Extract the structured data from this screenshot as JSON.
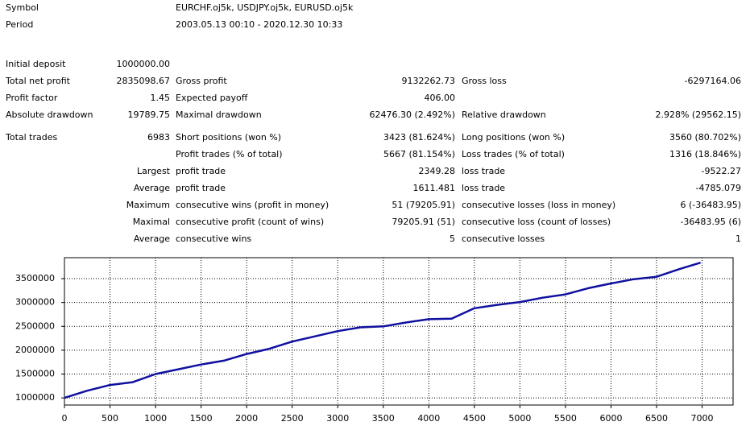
{
  "header": {
    "symbol_label": "Symbol",
    "symbol": "EURCHF.oj5k, USDJPY.oj5k, EURUSD.oj5k",
    "period_label": "Period",
    "period": "2003.05.13 00:10 - 2020.12.30 10:33"
  },
  "stats": [
    {
      "label": "Initial deposit",
      "value": "1000000.00"
    },
    {
      "label": "Total net profit",
      "value": "2835098.67",
      "label2": "Gross profit",
      "value2": "9132262.73",
      "label3": "Gross loss",
      "value3": "-6297164.06"
    },
    {
      "label": "Profit factor",
      "value": "1.45",
      "label2": "Expected payoff",
      "value2": "406.00"
    },
    {
      "label": "Absolute drawdown",
      "value": "19789.75",
      "label2": "Maximal drawdown",
      "value2": "62476.30 (2.492%)",
      "label3": "Relative drawdown",
      "value3": "2.928% (29562.15)"
    },
    {
      "label": "Total trades",
      "value": "6983",
      "label2": "Short positions (won %)",
      "value2": "3423 (81.624%)",
      "label3": "Long positions (won %)",
      "value3": "3560 (80.702%)"
    },
    {
      "label2": "Profit trades (% of total)",
      "value2": "5667 (81.154%)",
      "label3": "Loss trades (% of total)",
      "value3": "1316 (18.846%)"
    },
    {
      "prefix": "Largest",
      "label2": "profit trade",
      "value2": "2349.28",
      "label3": "loss trade",
      "value3": "-9522.27"
    },
    {
      "prefix": "Average",
      "label2": "profit trade",
      "value2": "1611.481",
      "label3": "loss trade",
      "value3": "-4785.079"
    },
    {
      "prefix": "Maximum",
      "label2": "consecutive wins (profit in money)",
      "value2": "51 (79205.91)",
      "label3": "consecutive losses (loss in money)",
      "value3": "6 (-36483.95)"
    },
    {
      "prefix": "Maximal",
      "label2": "consecutive profit (count of wins)",
      "value2": "79205.91 (51)",
      "label3": "consecutive loss (count of losses)",
      "value3": "-36483.95 (6)"
    },
    {
      "prefix": "Average",
      "label2": "consecutive wins",
      "value2": "5",
      "label3": "consecutive losses",
      "value3": "1"
    }
  ],
  "chart_data": {
    "type": "line",
    "color": "#1010a0",
    "x": [
      0,
      250,
      500,
      750,
      1000,
      1250,
      1500,
      1750,
      2000,
      2250,
      2500,
      2750,
      3000,
      3250,
      3500,
      3750,
      4000,
      4250,
      4500,
      4750,
      5000,
      5250,
      5500,
      5750,
      6000,
      6250,
      6500,
      6750,
      6983
    ],
    "values": [
      1000000,
      1150000,
      1270000,
      1330000,
      1500000,
      1600000,
      1700000,
      1780000,
      1920000,
      2030000,
      2180000,
      2290000,
      2400000,
      2480000,
      2500000,
      2580000,
      2650000,
      2660000,
      2880000,
      2950000,
      3010000,
      3100000,
      3170000,
      3300000,
      3400000,
      3490000,
      3540000,
      3700000,
      3835000
    ],
    "xlim": [
      0,
      7340
    ],
    "ylim": [
      850000,
      3940000
    ],
    "xticks": [
      0,
      500,
      1000,
      1500,
      2000,
      2500,
      3000,
      3500,
      4000,
      4500,
      5000,
      5500,
      6000,
      6500,
      7000
    ],
    "yticks": [
      1000000,
      1500000,
      2000000,
      2500000,
      3000000,
      3500000
    ],
    "grid": true
  }
}
